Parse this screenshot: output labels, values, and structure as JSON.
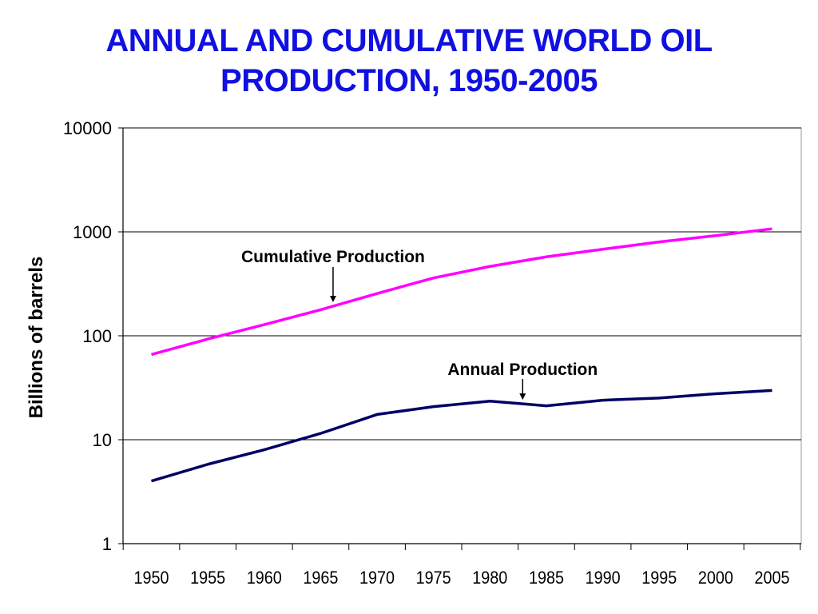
{
  "title_lines": [
    "ANNUAL AND CUMULATIVE WORLD OIL",
    "PRODUCTION, 1950-2005"
  ],
  "chart_data": {
    "type": "line",
    "title": "ANNUAL AND CUMULATIVE WORLD OIL PRODUCTION, 1950-2005",
    "xlabel": "",
    "ylabel": "Billions of barrels",
    "yscale": "log",
    "ylim": [
      1,
      10000
    ],
    "y_ticks": [
      "1",
      "10",
      "100",
      "1000",
      "10000"
    ],
    "x_ticks": [
      "1950",
      "1955",
      "1960",
      "1965",
      "1970",
      "1975",
      "1980",
      "1985",
      "1990",
      "1995",
      "2000",
      "2005"
    ],
    "grid": "horizontal",
    "series": [
      {
        "name": "Cumulative Production",
        "color": "#ff00ff",
        "x": [
          1950,
          1955,
          1960,
          1965,
          1970,
          1975,
          1980,
          1985,
          1990,
          1995,
          2000,
          2005
        ],
        "values": [
          66,
          93,
          128,
          178,
          255,
          360,
          465,
          575,
          680,
          800,
          920,
          1070
        ]
      },
      {
        "name": "Annual Production",
        "color": "#000066",
        "x": [
          1950,
          1955,
          1960,
          1965,
          1970,
          1975,
          1980,
          1985,
          1990,
          1995,
          2000,
          2005
        ],
        "values": [
          4.0,
          5.8,
          8.0,
          11.5,
          17.5,
          20.8,
          23.5,
          21.2,
          24.0,
          25.2,
          27.7,
          29.8
        ]
      }
    ],
    "annotations": [
      {
        "text": "Cumulative Production",
        "series": 0,
        "target_x": 1966.1
      },
      {
        "text": "Annual Production",
        "series": 1,
        "target_x": 1982.9
      }
    ]
  }
}
